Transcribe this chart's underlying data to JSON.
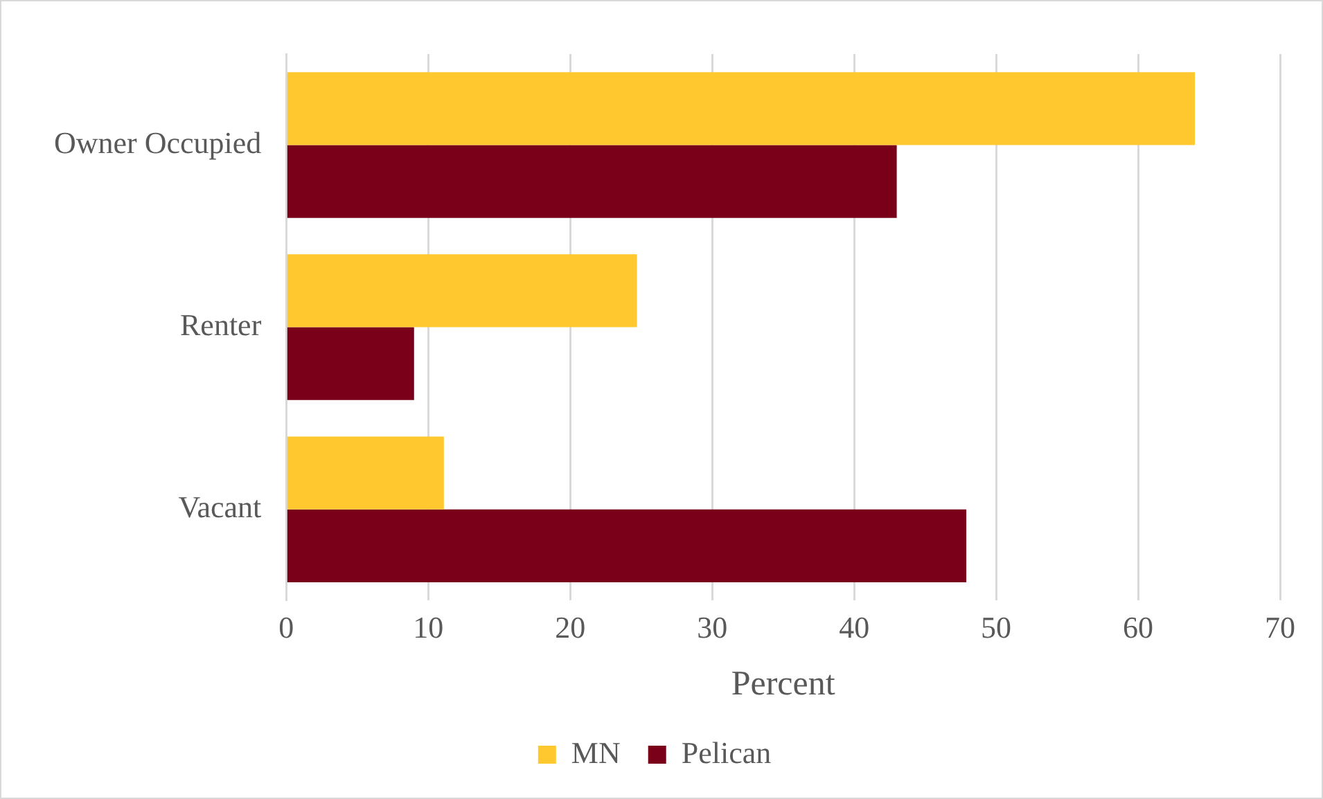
{
  "chart_data": {
    "type": "bar",
    "orientation": "horizontal",
    "xlabel": "Percent",
    "categories": [
      "Owner Occupied",
      "Renter",
      "Vacant"
    ],
    "series": [
      {
        "name": "MN",
        "color": "#ffc82e",
        "values": [
          64,
          24.7,
          11.1
        ]
      },
      {
        "name": "Pelican",
        "color": "#7a0019",
        "values": [
          43,
          9,
          47.9
        ]
      }
    ],
    "xlim": [
      0,
      70
    ],
    "xticks": [
      0,
      10,
      20,
      30,
      40,
      50,
      60,
      70
    ],
    "grid": "x",
    "legend": "bottom"
  }
}
